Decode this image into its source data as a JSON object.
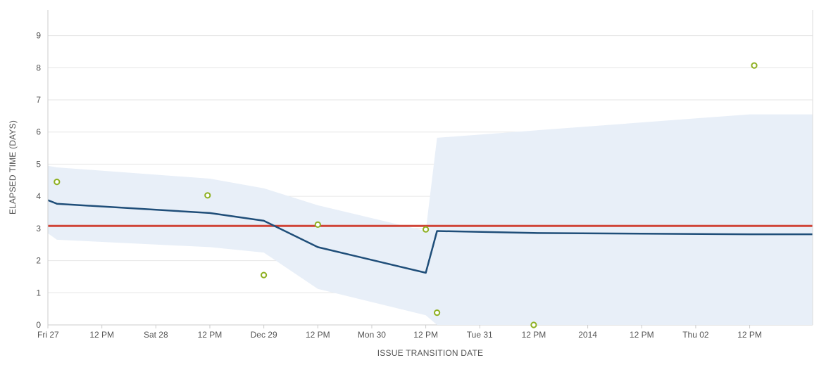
{
  "chart_data": {
    "type": "line",
    "xlabel": "ISSUE TRANSITION DATE",
    "ylabel": "ELAPSED TIME (DAYS)",
    "ylim": [
      0,
      9.8
    ],
    "y_ticks": [
      0,
      1,
      2,
      3,
      4,
      5,
      6,
      7,
      8,
      9
    ],
    "xlim": [
      "2013-12-27T00:00",
      "2014-01-03T02:00"
    ],
    "x_ticks": [
      {
        "t": "2013-12-27T00:00",
        "label": "Fri 27"
      },
      {
        "t": "2013-12-27T12:00",
        "label": "12 PM"
      },
      {
        "t": "2013-12-28T00:00",
        "label": "Sat 28"
      },
      {
        "t": "2013-12-28T12:00",
        "label": "12 PM"
      },
      {
        "t": "2013-12-29T00:00",
        "label": "Dec 29"
      },
      {
        "t": "2013-12-29T12:00",
        "label": "12 PM"
      },
      {
        "t": "2013-12-30T00:00",
        "label": "Mon 30"
      },
      {
        "t": "2013-12-30T12:00",
        "label": "12 PM"
      },
      {
        "t": "2013-12-31T00:00",
        "label": "Tue 31"
      },
      {
        "t": "2013-12-31T12:00",
        "label": "12 PM"
      },
      {
        "t": "2014-01-01T00:00",
        "label": "2014"
      },
      {
        "t": "2014-01-01T12:00",
        "label": "12 PM"
      },
      {
        "t": "2014-01-02T00:00",
        "label": "Thu 02"
      },
      {
        "t": "2014-01-02T12:00",
        "label": "12 PM"
      }
    ],
    "grid": true,
    "series": [
      {
        "kind": "band",
        "color": "#e8eff8",
        "points": [
          {
            "t": "2013-12-27T00:00",
            "low": 2.85,
            "high": 4.95
          },
          {
            "t": "2013-12-27T02:00",
            "low": 2.65,
            "high": 4.9
          },
          {
            "t": "2013-12-28T12:00",
            "low": 2.42,
            "high": 4.55
          },
          {
            "t": "2013-12-29T00:00",
            "low": 2.25,
            "high": 4.25
          },
          {
            "t": "2013-12-29T12:00",
            "low": 1.12,
            "high": 3.72
          },
          {
            "t": "2013-12-30T12:00",
            "low": 0.3,
            "high": 2.92
          },
          {
            "t": "2013-12-30T14:30",
            "low": 0.0,
            "high": 5.82
          },
          {
            "t": "2014-01-02T12:00",
            "low": 0.0,
            "high": 6.55
          },
          {
            "t": "2014-01-03T02:00",
            "low": 0.0,
            "high": 6.55
          }
        ]
      },
      {
        "kind": "line",
        "color": "#1f4e79",
        "points": [
          {
            "t": "2013-12-27T00:00",
            "y": 3.88
          },
          {
            "t": "2013-12-27T02:00",
            "y": 3.77
          },
          {
            "t": "2013-12-28T12:00",
            "y": 3.48
          },
          {
            "t": "2013-12-29T00:00",
            "y": 3.24
          },
          {
            "t": "2013-12-29T12:00",
            "y": 2.42
          },
          {
            "t": "2013-12-30T12:00",
            "y": 1.62
          },
          {
            "t": "2013-12-30T14:30",
            "y": 2.92
          },
          {
            "t": "2013-12-31T12:00",
            "y": 2.86
          },
          {
            "t": "2014-01-02T12:00",
            "y": 2.82
          },
          {
            "t": "2014-01-03T02:00",
            "y": 2.82
          }
        ]
      },
      {
        "kind": "hline",
        "color": "#d04437",
        "y": 3.08
      },
      {
        "kind": "scatter",
        "color": "#8eb021",
        "points": [
          {
            "t": "2013-12-27T02:00",
            "y": 4.45
          },
          {
            "t": "2013-12-28T11:30",
            "y": 4.03
          },
          {
            "t": "2013-12-29T00:00",
            "y": 1.55
          },
          {
            "t": "2013-12-29T12:00",
            "y": 3.12
          },
          {
            "t": "2013-12-30T12:00",
            "y": 2.97
          },
          {
            "t": "2013-12-30T14:30",
            "y": 0.38
          },
          {
            "t": "2013-12-31T12:00",
            "y": 0.0
          },
          {
            "t": "2014-01-02T13:00",
            "y": 8.07
          }
        ]
      }
    ]
  }
}
